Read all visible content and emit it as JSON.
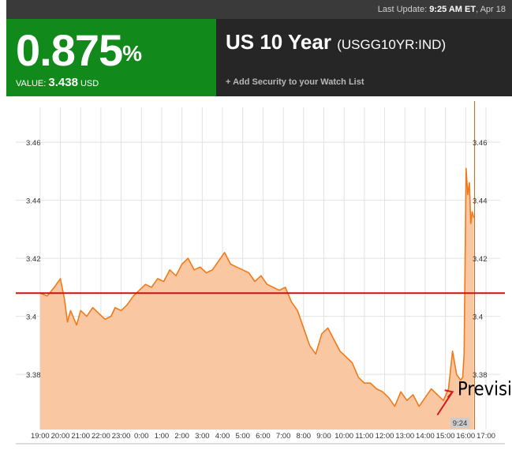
{
  "header": {
    "last_update_label": "Last Update:",
    "last_update_time": "9:25 AM ET",
    "last_update_date": ", Apr 18",
    "yield_value": "0.875",
    "yield_unit": "%",
    "value_label": "VALUE:",
    "value": "3.438",
    "currency": "USD",
    "security_name": "US 10 Year",
    "ticker": "(USGG10YR:IND)",
    "watchlist_link": "+ Add Security to your Watch List"
  },
  "colors": {
    "green_panel": "#118a1b",
    "dark_panel": "#262626",
    "line": "#f07a1a",
    "fill": "#f9c7a2",
    "reference_line": "#cc1111"
  },
  "chart_data": {
    "type": "area",
    "x_tick_labels": [
      "19:00",
      "20:00",
      "21:00",
      "22:00",
      "23:00",
      "0:00",
      "1:00",
      "2:00",
      "3:00",
      "4:00",
      "5:00",
      "6:00",
      "7:00",
      "8:00",
      "9:00",
      "10:00",
      "11:00",
      "12:00",
      "13:00",
      "14:00",
      "15:00",
      "16:00",
      "17:00"
    ],
    "y_ticks": [
      3.38,
      3.4,
      3.42,
      3.44,
      3.46
    ],
    "y_tick_labels": [
      "3.38",
      "3.4",
      "3.42",
      "3.44",
      "3.46"
    ],
    "ylim": [
      3.361,
      3.472
    ],
    "x_unit": "hours after 19:00",
    "xlim": [
      -1.2,
      22.7
    ],
    "reference_line": 3.408,
    "cursor_label": "9:24",
    "grid": true,
    "series": [
      {
        "points": [
          [
            0.0,
            3.408
          ],
          [
            0.35,
            3.407
          ],
          [
            0.7,
            3.41
          ],
          [
            1.0,
            3.413
          ],
          [
            1.2,
            3.406
          ],
          [
            1.35,
            3.398
          ],
          [
            1.5,
            3.402
          ],
          [
            1.8,
            3.397
          ],
          [
            2.0,
            3.402
          ],
          [
            2.3,
            3.4
          ],
          [
            2.6,
            3.403
          ],
          [
            2.9,
            3.401
          ],
          [
            3.2,
            3.399
          ],
          [
            3.5,
            3.4
          ],
          [
            3.7,
            3.403
          ],
          [
            4.0,
            3.402
          ],
          [
            4.3,
            3.404
          ],
          [
            4.6,
            3.407
          ],
          [
            4.9,
            3.409
          ],
          [
            5.2,
            3.411
          ],
          [
            5.5,
            3.41
          ],
          [
            5.8,
            3.413
          ],
          [
            6.1,
            3.412
          ],
          [
            6.4,
            3.416
          ],
          [
            6.7,
            3.414
          ],
          [
            7.0,
            3.418
          ],
          [
            7.3,
            3.42
          ],
          [
            7.6,
            3.416
          ],
          [
            7.9,
            3.417
          ],
          [
            8.2,
            3.415
          ],
          [
            8.5,
            3.416
          ],
          [
            8.8,
            3.419
          ],
          [
            9.1,
            3.422
          ],
          [
            9.4,
            3.418
          ],
          [
            9.7,
            3.417
          ],
          [
            10.0,
            3.416
          ],
          [
            10.3,
            3.415
          ],
          [
            10.6,
            3.412
          ],
          [
            10.9,
            3.414
          ],
          [
            11.2,
            3.411
          ],
          [
            11.5,
            3.41
          ],
          [
            11.8,
            3.409
          ],
          [
            12.1,
            3.41
          ],
          [
            12.4,
            3.405
          ],
          [
            12.7,
            3.402
          ],
          [
            13.0,
            3.396
          ],
          [
            13.3,
            3.39
          ],
          [
            13.6,
            3.387
          ],
          [
            13.9,
            3.394
          ],
          [
            14.2,
            3.396
          ],
          [
            14.5,
            3.392
          ],
          [
            14.8,
            3.388
          ],
          [
            15.1,
            3.386
          ],
          [
            15.4,
            3.384
          ],
          [
            15.7,
            3.379
          ],
          [
            16.0,
            3.377
          ],
          [
            16.3,
            3.377
          ],
          [
            16.6,
            3.375
          ],
          [
            16.9,
            3.374
          ],
          [
            17.2,
            3.372
          ],
          [
            17.5,
            3.369
          ],
          [
            17.8,
            3.374
          ],
          [
            18.1,
            3.371
          ],
          [
            18.4,
            3.373
          ],
          [
            18.7,
            3.369
          ],
          [
            19.0,
            3.372
          ],
          [
            19.3,
            3.375
          ],
          [
            19.6,
            3.373
          ],
          [
            19.9,
            3.371
          ],
          [
            20.15,
            3.375
          ],
          [
            20.35,
            3.388
          ],
          [
            20.55,
            3.38
          ],
          [
            20.75,
            3.378
          ],
          [
            20.85,
            3.379
          ],
          [
            20.92,
            3.387
          ],
          [
            21.02,
            3.451
          ],
          [
            21.1,
            3.442
          ],
          [
            21.18,
            3.446
          ],
          [
            21.25,
            3.432
          ],
          [
            21.32,
            3.436
          ],
          [
            21.4,
            3.434
          ]
        ]
      }
    ]
  },
  "annotation": {
    "text": "Previsión a negativa"
  }
}
